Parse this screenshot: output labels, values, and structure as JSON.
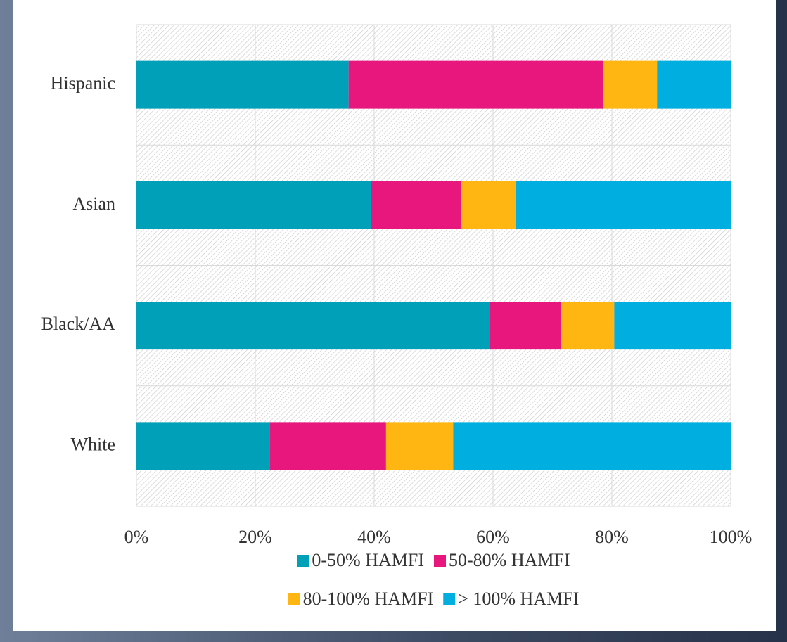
{
  "chart_data": {
    "type": "stacked-barh",
    "categories": [
      "Hispanic",
      "Asian",
      "Black/AA",
      "White"
    ],
    "series": [
      {
        "name": "0-50% HAMFI",
        "color": "#00a0b8",
        "values": [
          35.7,
          39.5,
          59.5,
          22.4
        ]
      },
      {
        "name": "50-80% HAMFI",
        "color": "#e8177d",
        "values": [
          42.9,
          15.2,
          12.0,
          19.6
        ]
      },
      {
        "name": "80-100% HAMFI",
        "color": "#ffb612",
        "values": [
          9.0,
          9.2,
          8.9,
          11.3
        ]
      },
      {
        "name": "> 100% HAMFI",
        "color": "#00aedf",
        "values": [
          12.4,
          36.1,
          19.6,
          46.7
        ]
      }
    ],
    "xlim": [
      0,
      100
    ],
    "xticks": [
      {
        "value": 0,
        "label": "0%"
      },
      {
        "value": 20,
        "label": "20%"
      },
      {
        "value": 40,
        "label": "40%"
      },
      {
        "value": 60,
        "label": "60%"
      },
      {
        "value": 80,
        "label": "80%"
      },
      {
        "value": 100,
        "label": "100%"
      }
    ],
    "grid": true,
    "legend": "bottom"
  }
}
